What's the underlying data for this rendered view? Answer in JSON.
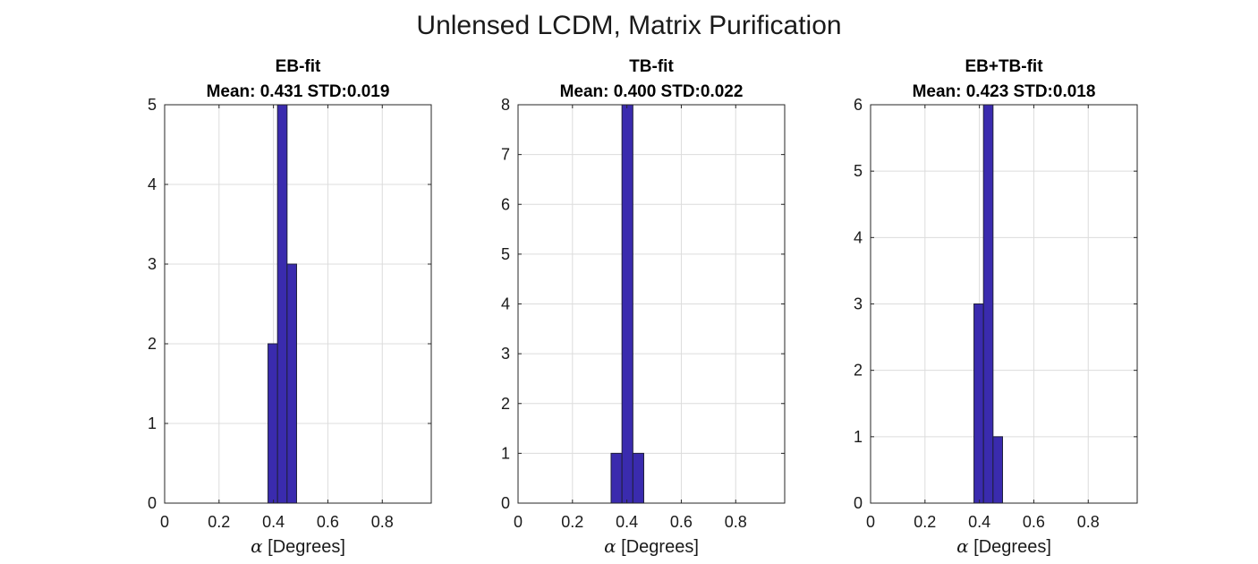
{
  "figure": {
    "title": "Unlensed LCDM, Matrix Purification"
  },
  "colors": {
    "bar_fill": "#3A2BAE",
    "bar_edge": "#1f1f3a",
    "grid": "#dcdcdc",
    "axis": "#262626",
    "text": "#1a1a1a"
  },
  "chart_data": [
    {
      "type": "bar",
      "title_line1": "EB-fit",
      "title_line2": "Mean: 0.431 STD:0.019",
      "xlabel_symbol": "α",
      "xlabel_text": "[Degrees]",
      "xlim": [
        0,
        0.98
      ],
      "ylim": [
        0,
        5
      ],
      "xticks": [
        0,
        0.2,
        0.4,
        0.6,
        0.8
      ],
      "xtick_labels": [
        "0",
        "0.2",
        "0.4",
        "0.6",
        "0.8"
      ],
      "yticks": [
        0,
        1,
        2,
        3,
        4,
        5
      ],
      "ytick_labels": [
        "0",
        "1",
        "2",
        "3",
        "4",
        "5"
      ],
      "grid": true,
      "bin_edges": [
        0.38,
        0.415,
        0.45,
        0.485
      ],
      "counts": [
        2,
        5,
        3
      ]
    },
    {
      "type": "bar",
      "title_line1": "TB-fit",
      "title_line2": "Mean: 0.400 STD:0.022",
      "xlabel_symbol": "α",
      "xlabel_text": "[Degrees]",
      "xlim": [
        0,
        0.98
      ],
      "ylim": [
        0,
        8
      ],
      "xticks": [
        0,
        0.2,
        0.4,
        0.6,
        0.8
      ],
      "xtick_labels": [
        "0",
        "0.2",
        "0.4",
        "0.6",
        "0.8"
      ],
      "yticks": [
        0,
        1,
        2,
        3,
        4,
        5,
        6,
        7,
        8
      ],
      "ytick_labels": [
        "0",
        "1",
        "2",
        "3",
        "4",
        "5",
        "6",
        "7",
        "8"
      ],
      "grid": true,
      "bin_edges": [
        0.342,
        0.382,
        0.422,
        0.462
      ],
      "counts": [
        1,
        8,
        1
      ]
    },
    {
      "type": "bar",
      "title_line1": "EB+TB-fit",
      "title_line2": "Mean: 0.423 STD:0.018",
      "xlabel_symbol": "α",
      "xlabel_text": "[Degrees]",
      "xlim": [
        0,
        0.98
      ],
      "ylim": [
        0,
        6
      ],
      "xticks": [
        0,
        0.2,
        0.4,
        0.6,
        0.8
      ],
      "xtick_labels": [
        "0",
        "0.2",
        "0.4",
        "0.6",
        "0.8"
      ],
      "yticks": [
        0,
        1,
        2,
        3,
        4,
        5,
        6
      ],
      "ytick_labels": [
        "0",
        "1",
        "2",
        "3",
        "4",
        "5",
        "6"
      ],
      "grid": true,
      "bin_edges": [
        0.38,
        0.415,
        0.45,
        0.485
      ],
      "counts": [
        3,
        6,
        1
      ]
    }
  ]
}
